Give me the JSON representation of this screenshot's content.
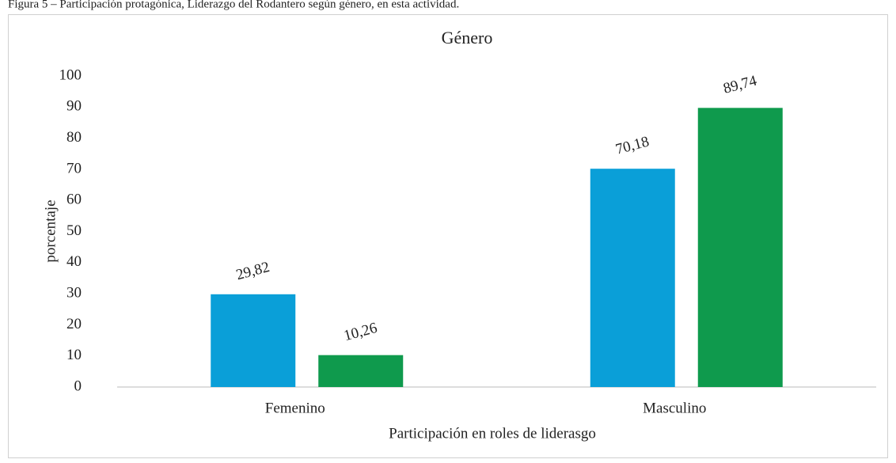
{
  "caption": "Figura 5 – Participación protagónica, Liderazgo del Rodantero según género, en esta actividad.",
  "chart_data": {
    "type": "bar",
    "title": "Género",
    "categories": [
      "Femenino",
      "Masculino"
    ],
    "series": [
      {
        "color": "#0a9fd8",
        "values": [
          29.82,
          70.18
        ],
        "value_labels": [
          "29,82",
          "70,18"
        ]
      },
      {
        "color": "#0f9a4d",
        "values": [
          10.26,
          89.74
        ],
        "value_labels": [
          "10,26",
          "89,74"
        ]
      }
    ],
    "ylim": [
      0,
      100
    ],
    "yticks": [
      0,
      10,
      20,
      30,
      40,
      50,
      60,
      70,
      80,
      90,
      100
    ],
    "xlabel": "Participación en roles de liderasgo",
    "ylabel": "porcentaje",
    "grid": false
  }
}
